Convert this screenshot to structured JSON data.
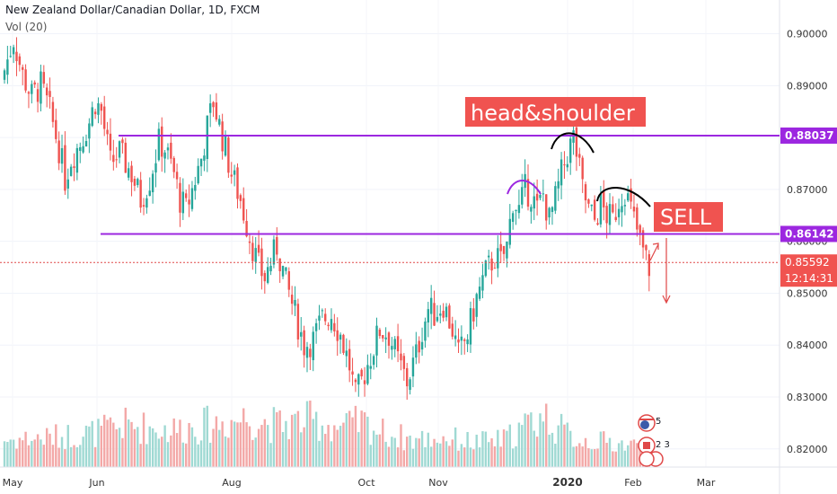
{
  "header": {
    "symbol_title": "New Zealand Dollar/Canadian Dollar, 1D, FXCM",
    "indicator": "Vol (20)"
  },
  "colors": {
    "up": "#26a69a",
    "down": "#ef5350",
    "vol_up": "#9fd9d3",
    "vol_down": "#f3a8a7",
    "level_line": "#9c27e0",
    "annotation_box": "#f05350",
    "price_line": "#e04848"
  },
  "annotations": {
    "pattern_label": "head&shoulder",
    "signal_label": "SELL"
  },
  "price_tags": {
    "resistance": "0.88037",
    "neckline": "0.86142",
    "last_price": "0.85592",
    "countdown": "12:14:31"
  },
  "events": {
    "marker_a": "5",
    "marker_b": "2 3"
  },
  "chart_data": {
    "type": "candlestick",
    "title": "New Zealand Dollar/Canadian Dollar, 1D, FXCM",
    "ylim": [
      0.8165,
      0.9065
    ],
    "y_ticks": [
      "0.90000",
      "0.89000",
      "0.88000",
      "0.87000",
      "0.86000",
      "0.85000",
      "0.84000",
      "0.83000",
      "0.82000"
    ],
    "x_ticks": [
      {
        "label": "May",
        "bold": false
      },
      {
        "label": "Jun",
        "bold": false
      },
      {
        "label": "Aug",
        "bold": false
      },
      {
        "label": "Oct",
        "bold": false
      },
      {
        "label": "Nov",
        "bold": false
      },
      {
        "label": "2020",
        "bold": true
      },
      {
        "label": "Feb",
        "bold": false
      },
      {
        "label": "Mar",
        "bold": false
      }
    ],
    "levels": [
      {
        "name": "resistance",
        "value": 0.88037
      },
      {
        "name": "neckline",
        "value": 0.86142
      }
    ],
    "last_price": 0.85592,
    "close_path": [
      [
        0,
        0.893
      ],
      [
        3,
        0.899
      ],
      [
        6,
        0.892
      ],
      [
        9,
        0.888
      ],
      [
        12,
        0.89
      ],
      [
        15,
        0.885
      ],
      [
        18,
        0.878
      ],
      [
        20,
        0.872
      ],
      [
        22,
        0.876
      ],
      [
        25,
        0.879
      ],
      [
        28,
        0.883
      ],
      [
        30,
        0.887
      ],
      [
        32,
        0.885
      ],
      [
        35,
        0.875
      ],
      [
        38,
        0.877
      ],
      [
        42,
        0.873
      ],
      [
        45,
        0.868
      ],
      [
        48,
        0.872
      ],
      [
        51,
        0.879
      ],
      [
        53,
        0.878
      ],
      [
        56,
        0.873
      ],
      [
        58,
        0.868
      ],
      [
        60,
        0.866
      ],
      [
        62,
        0.87
      ],
      [
        65,
        0.876
      ],
      [
        67,
        0.882
      ],
      [
        69,
        0.887
      ],
      [
        72,
        0.88
      ],
      [
        75,
        0.873
      ],
      [
        78,
        0.868
      ],
      [
        81,
        0.861
      ],
      [
        84,
        0.855
      ],
      [
        86,
        0.853
      ],
      [
        88,
        0.856
      ],
      [
        90,
        0.859
      ],
      [
        93,
        0.852
      ],
      [
        96,
        0.846
      ],
      [
        99,
        0.84
      ],
      [
        102,
        0.841
      ],
      [
        105,
        0.845
      ],
      [
        108,
        0.846
      ],
      [
        111,
        0.842
      ],
      [
        114,
        0.836
      ],
      [
        116,
        0.83
      ],
      [
        118,
        0.833
      ],
      [
        121,
        0.838
      ],
      [
        124,
        0.843
      ],
      [
        127,
        0.842
      ],
      [
        130,
        0.837
      ],
      [
        133,
        0.833
      ],
      [
        136,
        0.838
      ],
      [
        138,
        0.843
      ],
      [
        140,
        0.847
      ],
      [
        142,
        0.846
      ],
      [
        145,
        0.848
      ],
      [
        148,
        0.843
      ],
      [
        150,
        0.838
      ],
      [
        153,
        0.842
      ],
      [
        156,
        0.849
      ],
      [
        159,
        0.854
      ],
      [
        162,
        0.857
      ],
      [
        164,
        0.856
      ],
      [
        166,
        0.859
      ],
      [
        168,
        0.868
      ],
      [
        170,
        0.866
      ],
      [
        172,
        0.87
      ],
      [
        174,
        0.869
      ],
      [
        176,
        0.866
      ],
      [
        178,
        0.869
      ],
      [
        180,
        0.864
      ],
      [
        182,
        0.868
      ],
      [
        184,
        0.873
      ],
      [
        186,
        0.877
      ],
      [
        188,
        0.88
      ],
      [
        189,
        0.877
      ],
      [
        191,
        0.87
      ],
      [
        193,
        0.866
      ],
      [
        195,
        0.864
      ],
      [
        197,
        0.867
      ],
      [
        199,
        0.865
      ],
      [
        201,
        0.864
      ],
      [
        203,
        0.868
      ],
      [
        205,
        0.87
      ],
      [
        207,
        0.866
      ],
      [
        209,
        0.862
      ],
      [
        211,
        0.858
      ],
      [
        213,
        0.855
      ]
    ],
    "volume_path": [
      [
        0,
        0.55
      ],
      [
        15,
        0.6
      ],
      [
        30,
        0.7
      ],
      [
        40,
        0.85
      ],
      [
        55,
        0.75
      ],
      [
        60,
        0.8
      ],
      [
        72,
        0.9
      ],
      [
        80,
        1.0
      ],
      [
        90,
        0.85
      ],
      [
        100,
        0.95
      ],
      [
        112,
        0.8
      ],
      [
        118,
        0.9
      ],
      [
        125,
        0.7
      ],
      [
        135,
        0.55
      ],
      [
        145,
        0.6
      ],
      [
        155,
        0.5
      ],
      [
        165,
        0.55
      ],
      [
        170,
        0.75
      ],
      [
        178,
        1.05
      ],
      [
        185,
        0.7
      ],
      [
        190,
        0.55
      ],
      [
        200,
        0.5
      ],
      [
        213,
        0.4
      ]
    ]
  }
}
